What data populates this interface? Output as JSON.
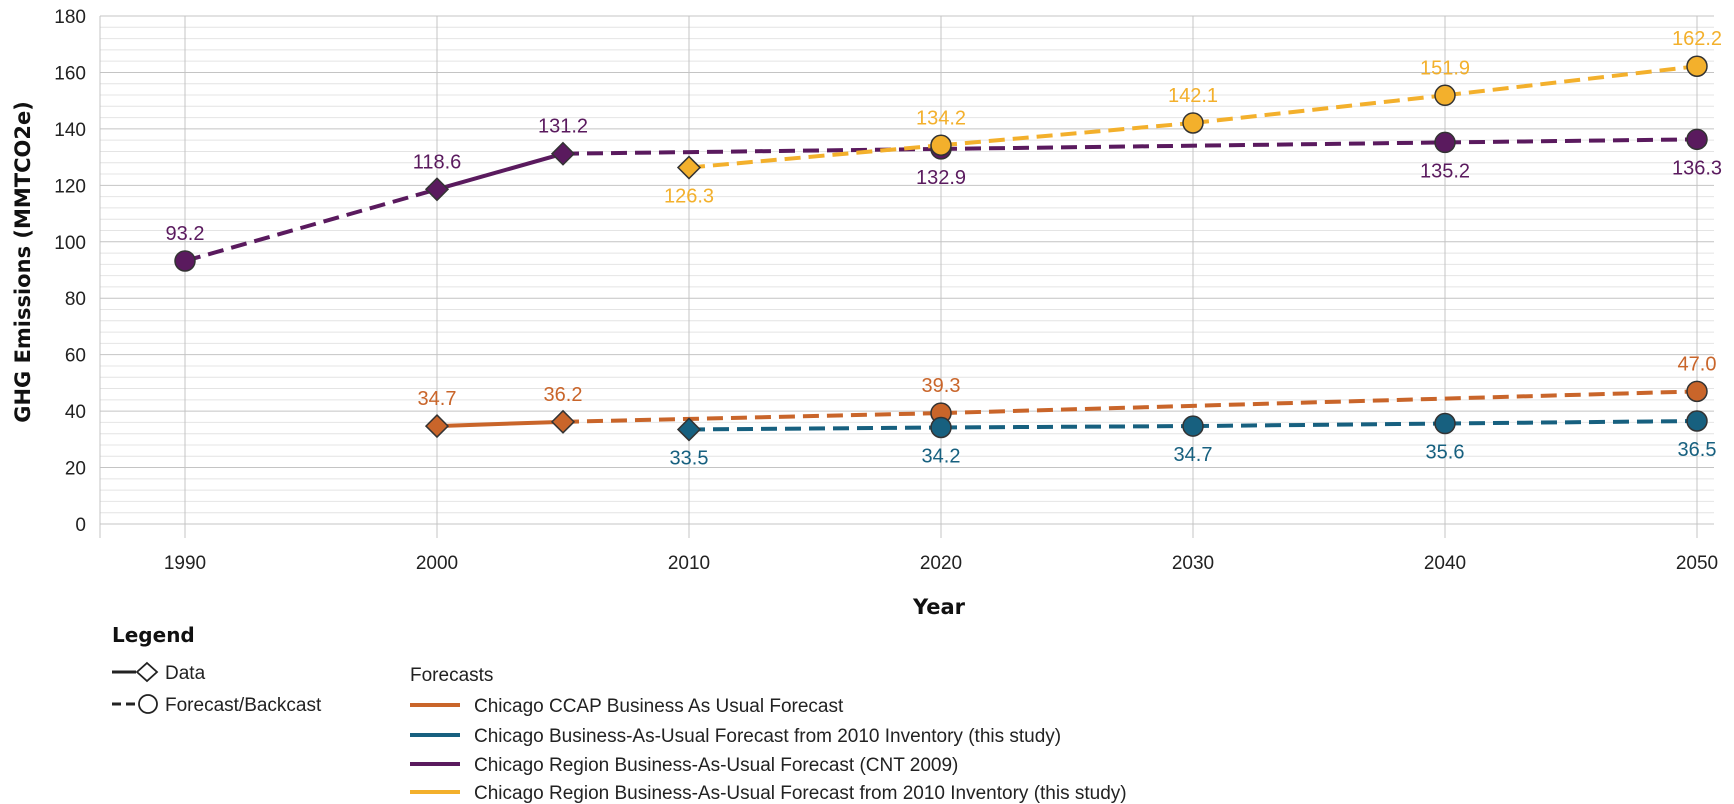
{
  "chart_data": {
    "type": "line",
    "xlabel": "Year",
    "ylabel": "GHG Emissions (MMTCO2e)",
    "ylim": [
      0,
      180
    ],
    "xlim": [
      1990,
      2050
    ],
    "yticks": [
      "0",
      "20",
      "40",
      "60",
      "80",
      "100",
      "120",
      "140",
      "160",
      "180"
    ],
    "xticks": [
      "1990",
      "2000",
      "2010",
      "2020",
      "2030",
      "2040",
      "2050"
    ],
    "grid": true,
    "series": [
      {
        "name": "Chicago CCAP Business As Usual Forecast",
        "color": "#c9652a",
        "points": [
          {
            "x": 2000,
            "y": 34.7,
            "kind": "data",
            "label": "34.7",
            "label_pos": "above"
          },
          {
            "x": 2005,
            "y": 36.2,
            "kind": "data",
            "label": "36.2",
            "label_pos": "above"
          },
          {
            "x": 2020,
            "y": 39.3,
            "kind": "forecast",
            "label": "39.3",
            "label_pos": "above"
          },
          {
            "x": 2050,
            "y": 47.0,
            "kind": "forecast",
            "label": "47.0",
            "label_pos": "above"
          }
        ]
      },
      {
        "name": "Chicago Business-As-Usual Forecast from 2010 Inventory (this study)",
        "color": "#17607f",
        "points": [
          {
            "x": 2010,
            "y": 33.5,
            "kind": "data",
            "label": "33.5",
            "label_pos": "below"
          },
          {
            "x": 2020,
            "y": 34.2,
            "kind": "forecast",
            "label": "34.2",
            "label_pos": "below"
          },
          {
            "x": 2030,
            "y": 34.7,
            "kind": "forecast",
            "label": "34.7",
            "label_pos": "below"
          },
          {
            "x": 2040,
            "y": 35.6,
            "kind": "forecast",
            "label": "35.6",
            "label_pos": "below"
          },
          {
            "x": 2050,
            "y": 36.5,
            "kind": "forecast",
            "label": "36.5",
            "label_pos": "below"
          }
        ]
      },
      {
        "name": "Chicago Region Business-As-Usual Forecast (CNT 2009)",
        "color": "#5a1a5e",
        "points": [
          {
            "x": 1990,
            "y": 93.2,
            "kind": "forecast",
            "label": "93.2",
            "label_pos": "above"
          },
          {
            "x": 2000,
            "y": 118.6,
            "kind": "data",
            "label": "118.6",
            "label_pos": "above"
          },
          {
            "x": 2005,
            "y": 131.2,
            "kind": "data",
            "label": "131.2",
            "label_pos": "above"
          },
          {
            "x": 2020,
            "y": 132.9,
            "kind": "forecast",
            "label": "132.9",
            "label_pos": "below"
          },
          {
            "x": 2040,
            "y": 135.2,
            "kind": "forecast",
            "label": "135.2",
            "label_pos": "below"
          },
          {
            "x": 2050,
            "y": 136.3,
            "kind": "forecast",
            "label": "136.3",
            "label_pos": "below"
          }
        ]
      },
      {
        "name": "Chicago Region Business-As-Usual Forecast from 2010 Inventory (this study)",
        "color": "#f3b02c",
        "points": [
          {
            "x": 2010,
            "y": 126.3,
            "kind": "data",
            "label": "126.3",
            "label_pos": "below"
          },
          {
            "x": 2020,
            "y": 134.2,
            "kind": "forecast",
            "label": "134.2",
            "label_pos": "above"
          },
          {
            "x": 2030,
            "y": 142.1,
            "kind": "forecast",
            "label": "142.1",
            "label_pos": "above"
          },
          {
            "x": 2040,
            "y": 151.9,
            "kind": "forecast",
            "label": "151.9",
            "label_pos": "above"
          },
          {
            "x": 2050,
            "y": 162.2,
            "kind": "forecast",
            "label": "162.2",
            "label_pos": "above"
          }
        ]
      }
    ]
  },
  "legend": {
    "title": "Legend",
    "data_label": "Data",
    "forecast_label": "Forecast/Backcast",
    "forecasts_title": "Forecasts",
    "entries": [
      "Chicago CCAP Business As Usual Forecast",
      "Chicago Business-As-Usual Forecast from 2010 Inventory (this study)",
      "Chicago Region Business-As-Usual Forecast (CNT 2009)",
      "Chicago Region Business-As-Usual Forecast from 2010 Inventory (this study)"
    ]
  }
}
